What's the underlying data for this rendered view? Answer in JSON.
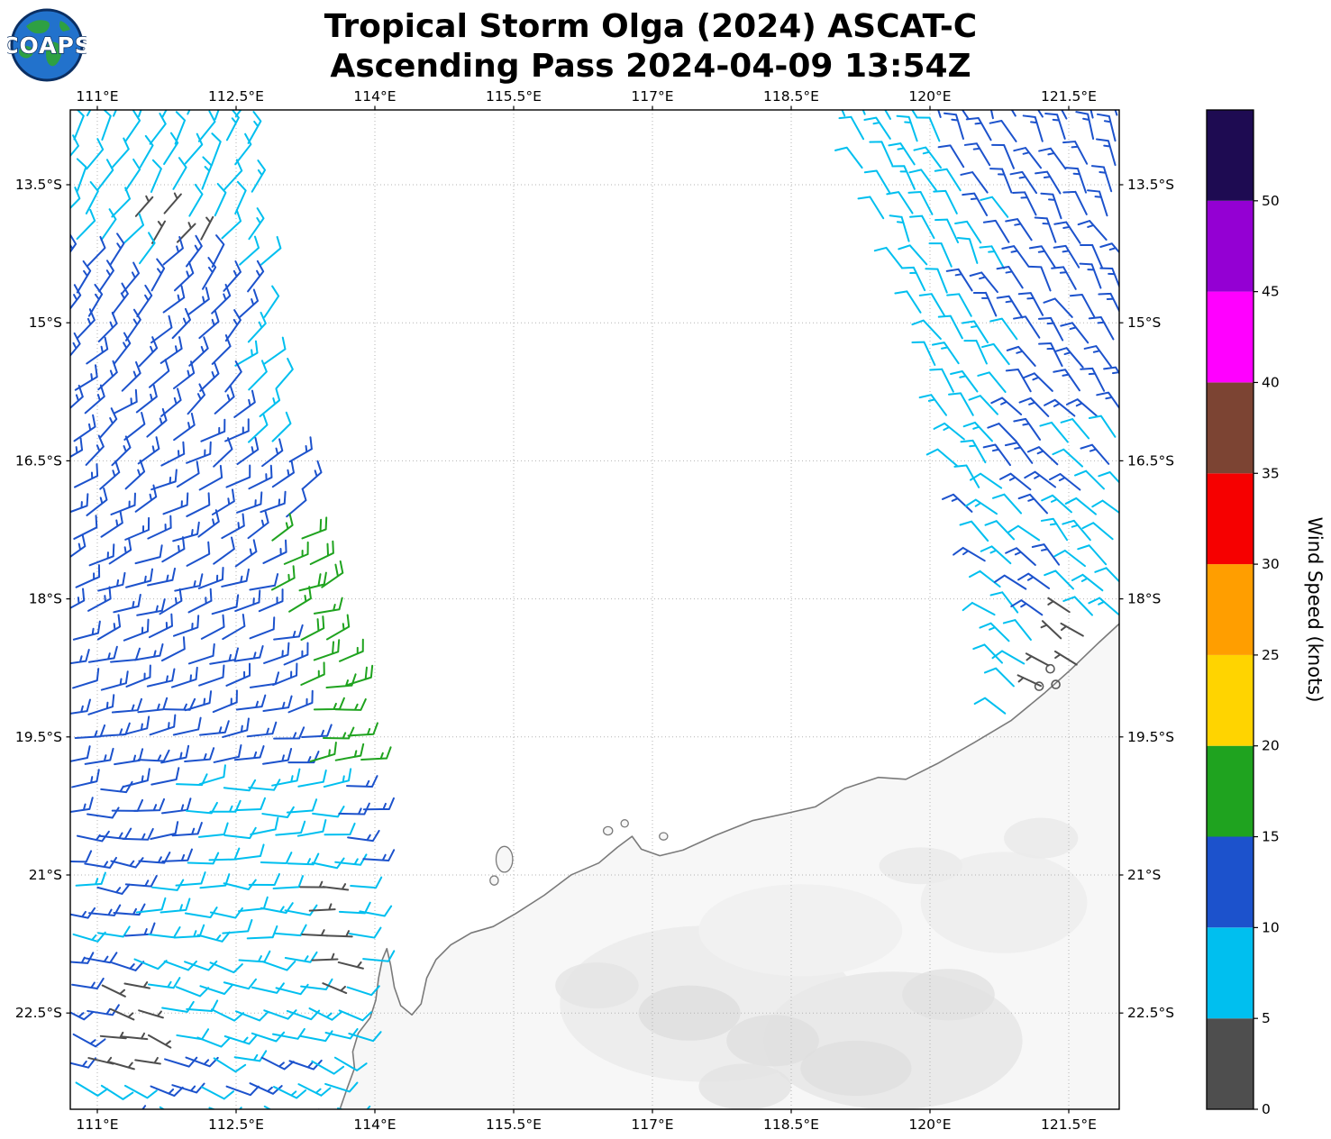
{
  "header": {
    "title": "Tropical Storm Olga (2024) ASCAT-C",
    "subtitle": "Ascending Pass 2024-04-09 13:54Z"
  },
  "logo": {
    "text": "COAPS"
  },
  "chart_data": {
    "type": "wind_barb_map",
    "title": "Tropical Storm Olga (2024) ASCAT-C",
    "subtitle": "Ascending Pass 2024-04-09 13:54Z",
    "axes": {
      "lon_ticks": [
        {
          "v": 111,
          "label": "111°E"
        },
        {
          "v": 112.5,
          "label": "112.5°E"
        },
        {
          "v": 114,
          "label": "114°E"
        },
        {
          "v": 115.5,
          "label": "115.5°E"
        },
        {
          "v": 117,
          "label": "117°E"
        },
        {
          "v": 118.5,
          "label": "118.5°E"
        },
        {
          "v": 120,
          "label": "120°E"
        },
        {
          "v": 121.5,
          "label": "121.5°E"
        }
      ],
      "lat_ticks": [
        {
          "v": 13.5,
          "label": "13.5°S"
        },
        {
          "v": 15,
          "label": "15°S"
        },
        {
          "v": 16.5,
          "label": "16.5°S"
        },
        {
          "v": 18,
          "label": "18°S"
        },
        {
          "v": 19.5,
          "label": "19.5°S"
        },
        {
          "v": 21,
          "label": "21°S"
        },
        {
          "v": 22.5,
          "label": "22.5°S"
        }
      ],
      "lon_range_deg_e": [
        110.71,
        122.04
      ],
      "lat_range_deg_s": [
        12.69,
        23.55
      ],
      "grid": "dotted"
    },
    "colorbar": {
      "label": "Wind Speed (knots)",
      "min": 0,
      "max": 55,
      "ticks": [
        {
          "v": 0,
          "label": "0"
        },
        {
          "v": 5,
          "label": "5"
        },
        {
          "v": 10,
          "label": "10"
        },
        {
          "v": 15,
          "label": "15"
        },
        {
          "v": 20,
          "label": "20"
        },
        {
          "v": 25,
          "label": "25"
        },
        {
          "v": 30,
          "label": "30"
        },
        {
          "v": 35,
          "label": "35"
        },
        {
          "v": 40,
          "label": "40"
        },
        {
          "v": 45,
          "label": "45"
        },
        {
          "v": 50,
          "label": "50"
        }
      ],
      "segments": [
        {
          "from": 0,
          "to": 5,
          "color": "#4e4e4e"
        },
        {
          "from": 5,
          "to": 10,
          "color": "#00bfef"
        },
        {
          "from": 10,
          "to": 15,
          "color": "#1c52cc"
        },
        {
          "from": 15,
          "to": 20,
          "color": "#1fa31f"
        },
        {
          "from": 20,
          "to": 25,
          "color": "#ffd400"
        },
        {
          "from": 25,
          "to": 30,
          "color": "#ff9e00"
        },
        {
          "from": 30,
          "to": 35,
          "color": "#f60000"
        },
        {
          "from": 35,
          "to": 40,
          "color": "#7c4433"
        },
        {
          "from": 40,
          "to": 45,
          "color": "#ff00ff"
        },
        {
          "from": 45,
          "to": 50,
          "color": "#9400d3"
        },
        {
          "from": 50,
          "to": 55,
          "color": "#1e0b52"
        }
      ]
    },
    "categories": {
      "gray": {
        "speed_kt": 3,
        "color": "#4e4e4e"
      },
      "cyan": {
        "speed_kt": 8,
        "color": "#00bfef"
      },
      "blue": {
        "speed_kt": 13,
        "color": "#1c52cc"
      },
      "green": {
        "speed_kt": 18,
        "color": "#1fa31f"
      }
    },
    "seed": 1337,
    "barb": {
      "length": 27,
      "spacing_deg": 0.27
    },
    "swaths": [
      {
        "name": "west",
        "lat_range": [
          12.75,
          23.62
        ],
        "west_boundary": [
          [
            12.7,
            110.63
          ],
          [
            23.7,
            110.63
          ]
        ],
        "east_boundary": [
          [
            12.7,
            112.62
          ],
          [
            13.5,
            112.72
          ],
          [
            14.5,
            112.82
          ],
          [
            15.5,
            112.92
          ],
          [
            16.5,
            113.1
          ],
          [
            17.5,
            113.42
          ],
          [
            18.5,
            113.66
          ],
          [
            19.5,
            113.88
          ],
          [
            20.3,
            113.98
          ],
          [
            21.3,
            113.98
          ],
          [
            22.3,
            113.86
          ],
          [
            23.7,
            113.7
          ]
        ],
        "default_cat": "blue",
        "direction": {
          "base": 25,
          "ref_lat": 12.7,
          "per_deg": 8.2,
          "jitter": 13
        },
        "color_rules": [
          {
            "lat": [
              12.6,
              14.35
            ],
            "cat": "cyan"
          },
          {
            "lat": [
              14.35,
              16.4
            ],
            "east_band": 0.5,
            "prob": 0.75,
            "cat": "cyan"
          },
          {
            "lat": [
              17.15,
              19.8
            ],
            "east_band": 0.62,
            "cat": "green"
          },
          {
            "lat": [
              19.8,
              21.05
            ],
            "lon": [
              111.85,
              113.6
            ],
            "cat": "cyan"
          },
          {
            "lat": [
              21.05,
              23.7
            ],
            "lon": [
              110.5,
              111.35
            ],
            "prob": 0.5,
            "cat": "blue"
          },
          {
            "lat": [
              22.95,
              23.7
            ],
            "lon": [
              111.5,
              113.4
            ],
            "prob": 0.45,
            "cat": "blue"
          },
          {
            "lat": [
              21.05,
              23.7
            ],
            "cat": "cyan"
          }
        ],
        "gray_points": [
          [
            111.57,
            13.94
          ],
          [
            111.74,
            13.99
          ],
          [
            111.9,
            14.04
          ],
          [
            112.06,
            14.08
          ],
          [
            113.3,
            21.12
          ],
          [
            113.42,
            21.3
          ],
          [
            113.28,
            21.47
          ],
          [
            113.5,
            21.6
          ],
          [
            113.38,
            21.78
          ],
          [
            113.55,
            21.95
          ],
          [
            113.42,
            22.1
          ],
          [
            111.12,
            22.18
          ],
          [
            111.3,
            22.32
          ],
          [
            111.18,
            22.5
          ],
          [
            111.42,
            22.6
          ],
          [
            111.25,
            22.76
          ],
          [
            111.08,
            22.9
          ],
          [
            111.38,
            22.92
          ]
        ],
        "special_points": []
      },
      {
        "name": "east",
        "lat_range": [
          12.75,
          19.65
        ],
        "west_boundary": [
          [
            12.7,
            119.03
          ],
          [
            13.5,
            119.38
          ],
          [
            14.5,
            119.76
          ],
          [
            15.5,
            120.06
          ],
          [
            16.5,
            120.3
          ],
          [
            17.5,
            120.55
          ],
          [
            18.5,
            120.72
          ],
          [
            19.7,
            120.88
          ]
        ],
        "east_boundary": [
          [
            12.7,
            122.15
          ],
          [
            19.7,
            122.15
          ]
        ],
        "default_cat": "cyan",
        "direction": {
          "base": 338,
          "ref_lat": 12.7,
          "per_deg": -5.0,
          "jitter": 13
        },
        "color_rules": [
          {
            "lat": [
              12.6,
              14.2
            ],
            "west_band": 1.05,
            "cat": "cyan"
          },
          {
            "lat": [
              14.2,
              16.9
            ],
            "west_band": 0.55,
            "cat": "cyan"
          },
          {
            "lat": [
              13.8,
              16.3
            ],
            "lon": [
              119.9,
              120.95
            ],
            "prob": 0.45,
            "cat": "cyan"
          },
          {
            "lat": [
              16.2,
              18.4
            ],
            "lon": [
              121.45,
              122.2
            ],
            "prob": 0.5,
            "cat": "cyan"
          },
          {
            "lat": [
              12.6,
              16.9
            ],
            "cat": "blue"
          },
          {
            "lat": [
              16.9,
              18.3
            ],
            "prob": 0.38,
            "cat": "blue"
          },
          {
            "lat": [
              19.25,
              19.7
            ],
            "lon": [
              120.2,
              121.1
            ],
            "prob": 0.6,
            "cat": "blue"
          }
        ],
        "gray_points": [
          [
            121.55,
            18.25
          ],
          [
            121.7,
            18.4
          ],
          [
            121.45,
            18.52
          ],
          [
            121.6,
            18.68
          ],
          [
            121.33,
            18.78
          ],
          [
            121.2,
            18.93
          ],
          [
            121.1,
            19.06
          ]
        ],
        "special_points": [
          {
            "lon": 120.24,
            "lat": 17.3,
            "cat": "green"
          }
        ]
      }
    ],
    "geo": {
      "coastline": [
        [
          113.62,
          23.55
        ],
        [
          113.7,
          23.32
        ],
        [
          113.78,
          23.1
        ],
        [
          113.76,
          22.92
        ],
        [
          113.82,
          22.72
        ],
        [
          113.95,
          22.55
        ],
        [
          114.01,
          22.36
        ],
        [
          114.04,
          22.12
        ],
        [
          114.08,
          21.92
        ],
        [
          114.13,
          21.8
        ],
        [
          114.17,
          21.98
        ],
        [
          114.21,
          22.22
        ],
        [
          114.28,
          22.42
        ],
        [
          114.4,
          22.52
        ],
        [
          114.5,
          22.4
        ],
        [
          114.56,
          22.12
        ],
        [
          114.66,
          21.92
        ],
        [
          114.82,
          21.76
        ],
        [
          115.04,
          21.63
        ],
        [
          115.28,
          21.56
        ],
        [
          115.52,
          21.42
        ],
        [
          115.83,
          21.22
        ],
        [
          116.12,
          21.0
        ],
        [
          116.42,
          20.87
        ],
        [
          116.62,
          20.7
        ],
        [
          116.78,
          20.58
        ],
        [
          116.88,
          20.72
        ],
        [
          117.08,
          20.79
        ],
        [
          117.33,
          20.73
        ],
        [
          117.68,
          20.57
        ],
        [
          118.08,
          20.41
        ],
        [
          118.45,
          20.33
        ],
        [
          118.76,
          20.26
        ],
        [
          119.08,
          20.06
        ],
        [
          119.44,
          19.94
        ],
        [
          119.74,
          19.96
        ],
        [
          120.08,
          19.79
        ],
        [
          120.48,
          19.56
        ],
        [
          120.88,
          19.32
        ],
        [
          121.23,
          19.03
        ],
        [
          121.52,
          18.77
        ],
        [
          121.83,
          18.47
        ],
        [
          122.1,
          18.22
        ]
      ],
      "land_polygon_extra": [
        [
          122.3,
          18.2
        ],
        [
          122.3,
          23.8
        ],
        [
          113.4,
          23.8
        ]
      ],
      "islands": [
        [
          115.4,
          20.83,
          0.09,
          0.14
        ],
        [
          115.29,
          21.06,
          0.045,
          0.05
        ],
        [
          116.52,
          20.52,
          0.05,
          0.045
        ],
        [
          116.7,
          20.44,
          0.04,
          0.04
        ],
        [
          117.12,
          20.58,
          0.045,
          0.04
        ]
      ],
      "shading": [
        [
          117.6,
          22.4,
          1.6,
          0.85,
          "#ededed",
          1
        ],
        [
          119.6,
          22.8,
          1.4,
          0.75,
          "#e9e9e9",
          1
        ],
        [
          118.6,
          21.6,
          1.1,
          0.5,
          "#f1f1f1",
          1
        ],
        [
          120.8,
          21.3,
          0.9,
          0.55,
          "#efefef",
          1
        ],
        [
          117.4,
          22.5,
          0.55,
          0.3,
          "#dddddd",
          0.8
        ],
        [
          118.3,
          22.8,
          0.5,
          0.28,
          "#e0e0e0",
          0.9
        ],
        [
          119.2,
          23.1,
          0.6,
          0.3,
          "#dedede",
          0.8
        ],
        [
          118.0,
          23.3,
          0.5,
          0.25,
          "#e2e2e2",
          0.8
        ],
        [
          116.4,
          22.2,
          0.45,
          0.25,
          "#e3e3e3",
          0.8
        ],
        [
          120.2,
          22.3,
          0.5,
          0.28,
          "#e1e1e1",
          0.8
        ],
        [
          121.2,
          20.6,
          0.4,
          0.22,
          "#eaeaea",
          0.9
        ],
        [
          119.9,
          20.9,
          0.45,
          0.2,
          "#ececec",
          1
        ]
      ]
    },
    "calm_points": [
      [
        121.3,
        18.76
      ],
      [
        121.36,
        18.93
      ],
      [
        121.18,
        18.95
      ]
    ]
  }
}
